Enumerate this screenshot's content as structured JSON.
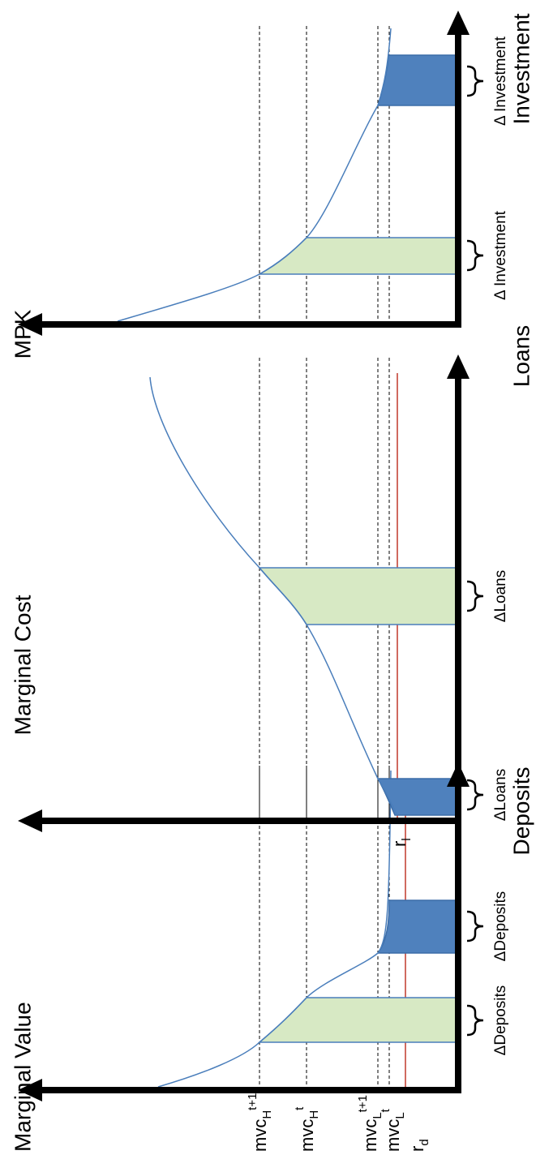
{
  "titles": {
    "deposits": "Marginal Value",
    "loans": "Marginal Cost",
    "investment": "MPK"
  },
  "axis_labels": {
    "deposits": "Deposits",
    "loans": "Loans",
    "investment": "Investment"
  },
  "levels": [
    {
      "base": "mvc",
      "sub": "H",
      "sup": "t+1"
    },
    {
      "base": "mvc",
      "sub": "H",
      "sup": "t"
    },
    {
      "base": "mvc",
      "sub": "L",
      "sup": "t+1"
    },
    {
      "base": "mvc",
      "sub": "L",
      "sup": "t"
    },
    {
      "base": "r",
      "sub": "d"
    }
  ],
  "rate_loans": {
    "base": "r",
    "sub": "l"
  },
  "deltas": {
    "deposits": [
      "ΔDeposits",
      "ΔDeposits"
    ],
    "loans": [
      "ΔLoans",
      "ΔLoans"
    ],
    "investment": [
      "Δ Investment",
      "Δ Investment"
    ]
  }
}
